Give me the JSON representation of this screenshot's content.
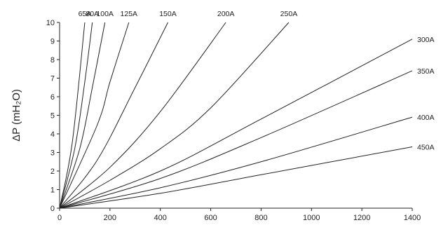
{
  "chart_data": {
    "type": "line",
    "title": "",
    "xlabel": "",
    "ylabel": "ΔP (mH₂O)",
    "xlim": [
      0,
      1400
    ],
    "ylim": [
      0,
      10
    ],
    "x_ticks": [
      0,
      200,
      400,
      600,
      800,
      1000,
      1200,
      1400
    ],
    "y_ticks": [
      0,
      1,
      2,
      3,
      4,
      5,
      6,
      7,
      8,
      9,
      10
    ],
    "grid": false,
    "legend": "none",
    "line_color": "#222222",
    "series": [
      {
        "name": "65A",
        "label_position": "top",
        "points": [
          [
            0,
            0
          ],
          [
            50,
            3.5
          ],
          [
            100,
            10
          ]
        ]
      },
      {
        "name": "80A",
        "label_position": "top",
        "points": [
          [
            0,
            0
          ],
          [
            60,
            3.2
          ],
          [
            100,
            6.8
          ],
          [
            130,
            10
          ]
        ]
      },
      {
        "name": "100A",
        "label_position": "top",
        "points": [
          [
            0,
            0
          ],
          [
            80,
            3.2
          ],
          [
            130,
            6.5
          ],
          [
            180,
            10
          ]
        ]
      },
      {
        "name": "125A",
        "label_position": "top",
        "points": [
          [
            0,
            0
          ],
          [
            150,
            4.5
          ],
          [
            200,
            6.8
          ],
          [
            275,
            10
          ]
        ]
      },
      {
        "name": "150A",
        "label_position": "top",
        "points": [
          [
            0,
            0
          ],
          [
            150,
            2.6
          ],
          [
            300,
            6.5
          ],
          [
            430,
            10
          ]
        ]
      },
      {
        "name": "200A",
        "label_position": "top",
        "points": [
          [
            0,
            0
          ],
          [
            200,
            2.2
          ],
          [
            400,
            5.2
          ],
          [
            660,
            10
          ]
        ]
      },
      {
        "name": "250A",
        "label_position": "top",
        "points": [
          [
            0,
            0
          ],
          [
            200,
            1.5
          ],
          [
            400,
            3.2
          ],
          [
            600,
            5.4
          ],
          [
            910,
            10
          ]
        ]
      },
      {
        "name": "300A",
        "label_position": "right",
        "points": [
          [
            0,
            0
          ],
          [
            400,
            2.0
          ],
          [
            800,
            4.8
          ],
          [
            1400,
            9.1
          ]
        ]
      },
      {
        "name": "350A",
        "label_position": "right",
        "points": [
          [
            0,
            0
          ],
          [
            400,
            1.6
          ],
          [
            800,
            3.8
          ],
          [
            1400,
            7.4
          ]
        ]
      },
      {
        "name": "400A",
        "label_position": "right",
        "points": [
          [
            0,
            0
          ],
          [
            400,
            1.1
          ],
          [
            800,
            2.5
          ],
          [
            1400,
            4.9
          ]
        ]
      },
      {
        "name": "450A",
        "label_position": "right",
        "points": [
          [
            0,
            0
          ],
          [
            400,
            0.8
          ],
          [
            800,
            1.8
          ],
          [
            1400,
            3.3
          ]
        ]
      }
    ]
  }
}
